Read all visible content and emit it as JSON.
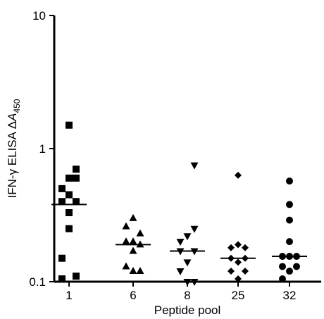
{
  "chart_data": {
    "type": "scatter",
    "xlabel": "Peptide pool",
    "ylabel_text": "IFN-γ ELISA ",
    "ylabel_delta": "Δ",
    "ylabel_a": "A",
    "ylabel_sub": "450",
    "yscale": "log",
    "ylim": [
      0.1,
      10
    ],
    "yticks": [
      {
        "value": 0.1,
        "label": "0.1"
      },
      {
        "value": 1,
        "label": "1"
      },
      {
        "value": 10,
        "label": "10"
      }
    ],
    "grid": false,
    "legend": "none",
    "groups": [
      {
        "label": "1",
        "marker": "square",
        "median": 0.38,
        "points": [
          [
            0,
            1.5
          ],
          [
            1,
            0.7
          ],
          [
            0,
            0.6
          ],
          [
            1,
            0.6
          ],
          [
            -1,
            0.5
          ],
          [
            0,
            0.45
          ],
          [
            -1,
            0.4
          ],
          [
            1,
            0.4
          ],
          [
            0,
            0.33
          ],
          [
            0,
            0.25
          ],
          [
            -1,
            0.15
          ],
          [
            -1,
            0.105
          ],
          [
            1,
            0.11
          ]
        ]
      },
      {
        "label": "6",
        "marker": "triangle-up",
        "median": 0.19,
        "points": [
          [
            0,
            0.3
          ],
          [
            -1,
            0.26
          ],
          [
            1,
            0.23
          ],
          [
            -1,
            0.2
          ],
          [
            0,
            0.2
          ],
          [
            1,
            0.19
          ],
          [
            0,
            0.17
          ],
          [
            -1,
            0.13
          ],
          [
            0,
            0.12
          ],
          [
            1,
            0.12
          ]
        ]
      },
      {
        "label": "8",
        "marker": "triangle-down",
        "median": 0.17,
        "points": [
          [
            1,
            0.75
          ],
          [
            1,
            0.25
          ],
          [
            0,
            0.22
          ],
          [
            -1,
            0.2
          ],
          [
            -1,
            0.17
          ],
          [
            1,
            0.17
          ],
          [
            0,
            0.14
          ],
          [
            -1,
            0.12
          ],
          [
            0,
            0.1
          ],
          [
            1,
            0.1
          ]
        ]
      },
      {
        "label": "25",
        "marker": "diamond",
        "median": 0.15,
        "points": [
          [
            0,
            0.63
          ],
          [
            0,
            0.19
          ],
          [
            1,
            0.18
          ],
          [
            -1,
            0.18
          ],
          [
            -1,
            0.15
          ],
          [
            1,
            0.15
          ],
          [
            0,
            0.14
          ],
          [
            -1,
            0.12
          ],
          [
            1,
            0.12
          ],
          [
            0,
            0.105
          ]
        ]
      },
      {
        "label": "32",
        "marker": "circle",
        "median": 0.155,
        "points": [
          [
            0,
            0.57
          ],
          [
            0,
            0.38
          ],
          [
            0,
            0.29
          ],
          [
            0,
            0.2
          ],
          [
            -1,
            0.155
          ],
          [
            1,
            0.155
          ],
          [
            0,
            0.155
          ],
          [
            -1,
            0.13
          ],
          [
            1,
            0.13
          ],
          [
            0,
            0.12
          ],
          [
            -1,
            0.105
          ]
        ]
      }
    ]
  }
}
